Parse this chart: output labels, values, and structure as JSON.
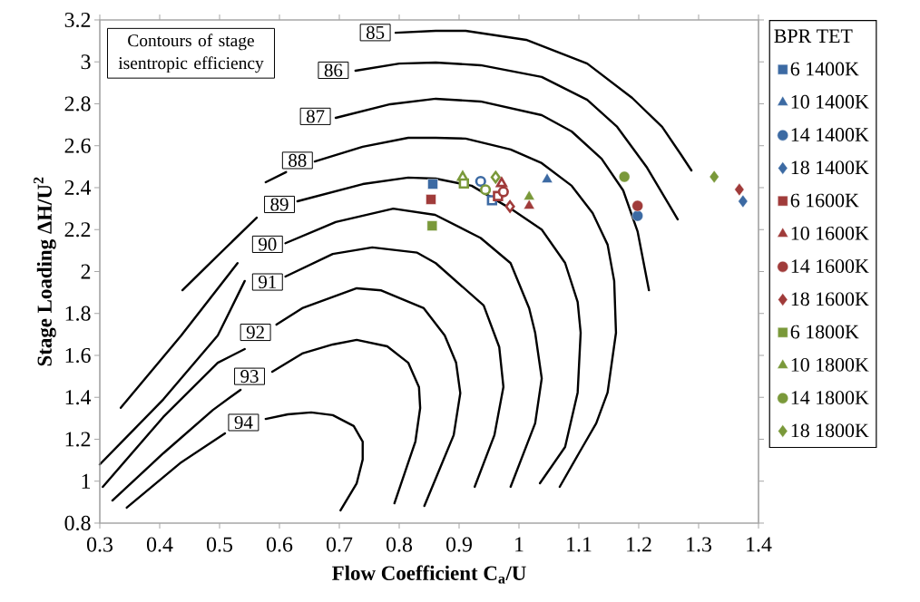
{
  "chart_data": {
    "type": "scatter",
    "xlabel": "Flow Coefficient C$_{a}$/U",
    "ylabel": "Stage Loading ΔH/U$^{2}$",
    "legend_title": "BPR  TET",
    "legend": "right",
    "xlim": [
      0.3,
      1.4
    ],
    "ylim": [
      0.8,
      3.2
    ],
    "xticks": [
      0.3,
      0.4,
      0.5,
      0.6,
      0.7,
      0.8,
      0.9,
      1,
      1.1,
      1.2,
      1.3,
      1.4
    ],
    "yticks": [
      0.8,
      1,
      1.2,
      1.4,
      1.6,
      1.8,
      2,
      2.2,
      2.4,
      2.6,
      2.8,
      3,
      3.2
    ],
    "annotations": [
      "Contours of stage isentropic efficiency",
      {
        "text": "85",
        "x": 0.76,
        "y": 3.14
      },
      {
        "text": "86",
        "x": 0.69,
        "y": 2.96
      },
      {
        "text": "87",
        "x": 0.66,
        "y": 2.74
      },
      {
        "text": "88",
        "x": 0.63,
        "y": 2.53
      },
      {
        "text": "89",
        "x": 0.6,
        "y": 2.32
      },
      {
        "text": "90",
        "x": 0.58,
        "y": 2.13
      },
      {
        "text": "91",
        "x": 0.58,
        "y": 1.95
      },
      {
        "text": "92",
        "x": 0.56,
        "y": 1.71
      },
      {
        "text": "93",
        "x": 0.55,
        "y": 1.5
      },
      {
        "text": "94",
        "x": 0.54,
        "y": 1.28
      }
    ],
    "series": [
      {
        "type": "line",
        "color": "#000000",
        "marker": "none",
        "x": [
          0.794,
          0.861,
          0.911,
          1.012,
          1.114,
          1.189,
          1.239,
          1.27,
          1.288
        ],
        "values": [
          3.139,
          3.148,
          3.148,
          3.105,
          2.992,
          2.828,
          2.69,
          2.56,
          2.482
        ]
      },
      {
        "type": "line",
        "color": "#000000",
        "marker": "none",
        "x": [
          0.727,
          0.8,
          0.861,
          0.936,
          1.038,
          1.114,
          1.164,
          1.214,
          1.25,
          1.265
        ],
        "values": [
          2.958,
          2.992,
          2.997,
          2.984,
          2.928,
          2.819,
          2.69,
          2.495,
          2.322,
          2.249
        ]
      },
      {
        "type": "line",
        "color": "#000000",
        "marker": "none",
        "x": [
          0.694,
          0.785,
          0.861,
          0.936,
          1.038,
          1.088,
          1.138,
          1.174,
          1.198,
          1.217
        ],
        "values": [
          2.733,
          2.798,
          2.824,
          2.811,
          2.746,
          2.668,
          2.538,
          2.387,
          2.192,
          1.911
        ]
      },
      {
        "type": "line",
        "color": "#000000",
        "marker": "none",
        "x": [
          0.577,
          0.611,
          null,
          0.659,
          0.739,
          0.815,
          0.861,
          0.911,
          0.986,
          1.038,
          1.088,
          1.123,
          1.148,
          1.159,
          1.162,
          1.148,
          1.129,
          1.1,
          1.068
        ],
        "values": [
          2.426,
          2.474,
          null,
          2.525,
          2.595,
          2.638,
          2.638,
          2.634,
          2.582,
          2.517,
          2.409,
          2.279,
          2.128,
          1.955,
          1.708,
          1.423,
          1.276,
          1.133,
          0.973
        ]
      },
      {
        "type": "line",
        "color": "#000000",
        "marker": "none",
        "x": [
          0.438,
          0.497,
          0.562,
          null,
          0.63,
          0.739,
          0.815,
          0.861,
          0.921,
          0.986,
          1.038,
          1.077,
          1.098,
          1.103,
          1.098,
          1.077,
          1.035
        ],
        "values": [
          1.911,
          2.076,
          2.257,
          null,
          2.335,
          2.417,
          2.448,
          2.443,
          2.409,
          2.3,
          2.2,
          2.041,
          1.855,
          1.708,
          1.423,
          1.163,
          0.99
        ]
      },
      {
        "type": "line",
        "color": "#000000",
        "marker": "none",
        "x": [
          0.335,
          0.436,
          0.53,
          null,
          0.61,
          0.694,
          0.79,
          0.86,
          0.936,
          0.986,
          1.017,
          1.027,
          1.038,
          1.027,
          0.986
        ],
        "values": [
          1.35,
          1.695,
          2.04,
          null,
          2.135,
          2.236,
          2.3,
          2.27,
          2.16,
          2.04,
          1.825,
          1.708,
          1.49,
          1.276,
          0.973
        ]
      },
      {
        "type": "line",
        "color": "#000000",
        "marker": "none",
        "x": [
          0.3,
          0.406,
          0.497,
          0.542,
          null,
          0.61,
          0.689,
          0.755,
          0.83,
          0.861,
          0.941,
          0.967,
          0.974,
          0.959,
          0.926
        ],
        "values": [
          1.08,
          1.39,
          1.695,
          1.955,
          null,
          1.976,
          2.084,
          2.115,
          2.09,
          2.04,
          1.838,
          1.64,
          1.45,
          1.22,
          0.973
        ]
      },
      {
        "type": "line",
        "color": "#000000",
        "marker": "none",
        "x": [
          0.305,
          0.406,
          0.497,
          0.542,
          null,
          0.595,
          0.638,
          0.729,
          0.77,
          0.841,
          0.876,
          0.895,
          0.902,
          0.891,
          0.842
        ],
        "values": [
          0.973,
          1.306,
          1.565,
          1.63,
          null,
          1.747,
          1.825,
          1.92,
          1.91,
          1.825,
          1.695,
          1.565,
          1.42,
          1.22,
          0.882
        ]
      },
      {
        "type": "line",
        "color": "#000000",
        "marker": "none",
        "x": [
          0.321,
          0.406,
          0.489,
          0.535,
          null,
          0.588,
          0.638,
          0.689,
          0.729,
          0.78,
          0.815,
          0.833,
          0.835,
          0.827,
          0.792
        ],
        "values": [
          0.908,
          1.133,
          1.34,
          1.436,
          null,
          1.522,
          1.609,
          1.652,
          1.674,
          1.643,
          1.565,
          1.449,
          1.349,
          1.189,
          0.895
        ]
      },
      {
        "type": "line",
        "color": "#000000",
        "marker": "none",
        "x": [
          0.345,
          0.436,
          0.509,
          null,
          0.577,
          0.614,
          0.653,
          0.689,
          0.724,
          0.739,
          0.739,
          0.729,
          0.702
        ],
        "values": [
          0.874,
          1.09,
          1.228,
          null,
          1.297,
          1.319,
          1.328,
          1.315,
          1.263,
          1.189,
          1.103,
          0.99,
          0.861
        ]
      },
      {
        "name": "6  1400K",
        "color": "#3c6aa3",
        "marker": "square",
        "x": [
          0.856
        ],
        "values": [
          2.417
        ]
      },
      {
        "name": "10  1400K",
        "color": "#3c6aa3",
        "marker": "triangle",
        "x": [
          1.047
        ],
        "values": [
          2.439
        ]
      },
      {
        "name": "14  1400K",
        "color": "#3c6aa3",
        "marker": "circle",
        "x": [
          1.198
        ],
        "values": [
          2.266
        ]
      },
      {
        "name": "18  1400K",
        "color": "#3c6aa3",
        "marker": "diamond",
        "x": [
          1.374
        ],
        "values": [
          2.335
        ]
      },
      {
        "name": "6  1600K",
        "color": "#a03b3a",
        "marker": "square",
        "x": [
          0.853
        ],
        "values": [
          2.344
        ]
      },
      {
        "name": "10  1600K",
        "color": "#a03b3a",
        "marker": "triangle",
        "x": [
          1.017
        ],
        "values": [
          2.313
        ]
      },
      {
        "name": "14  1600K",
        "color": "#a03b3a",
        "marker": "circle",
        "x": [
          1.198
        ],
        "values": [
          2.313
        ]
      },
      {
        "name": "18  1600K",
        "color": "#a03b3a",
        "marker": "diamond",
        "x": [
          1.368
        ],
        "values": [
          2.391
        ]
      },
      {
        "name": "6  1800K",
        "color": "#7a993a",
        "marker": "square",
        "x": [
          0.855
        ],
        "values": [
          2.218
        ]
      },
      {
        "name": "10  1800K",
        "color": "#7a993a",
        "marker": "triangle",
        "x": [
          1.017
        ],
        "values": [
          2.357
        ]
      },
      {
        "name": "14  1800K",
        "color": "#7a993a",
        "marker": "circle",
        "x": [
          1.176
        ],
        "values": [
          2.452
        ]
      },
      {
        "name": "18  1800K",
        "color": "#7a993a",
        "marker": "diamond",
        "x": [
          1.326
        ],
        "values": [
          2.452
        ]
      },
      {
        "color": "#7a993a",
        "marker": "triangle",
        "x": [
          0.906
        ],
        "values": [
          2.45
        ]
      },
      {
        "color": "#7a993a",
        "marker": "square",
        "x": [
          0.908
        ],
        "values": [
          2.42
        ]
      },
      {
        "color": "#3c6aa3",
        "marker": "circle",
        "x": [
          0.936
        ],
        "values": [
          2.43
        ]
      },
      {
        "color": "#7a993a",
        "marker": "circle",
        "x": [
          0.944
        ],
        "values": [
          2.39
        ]
      },
      {
        "color": "#7a993a",
        "marker": "diamond",
        "x": [
          0.961
        ],
        "values": [
          2.45
        ]
      },
      {
        "color": "#a03b3a",
        "marker": "triangle",
        "x": [
          0.971
        ],
        "values": [
          2.42
        ]
      },
      {
        "color": "#3c6aa3",
        "marker": "square",
        "x": [
          0.955
        ],
        "values": [
          2.34
        ]
      },
      {
        "color": "#a03b3a",
        "marker": "square",
        "x": [
          0.965
        ],
        "values": [
          2.36
        ]
      },
      {
        "color": "#a03b3a",
        "marker": "circle",
        "x": [
          0.974
        ],
        "values": [
          2.38
        ]
      },
      {
        "color": "#a03b3a",
        "marker": "diamond",
        "x": [
          0.985
        ],
        "values": [
          2.31
        ]
      }
    ]
  }
}
